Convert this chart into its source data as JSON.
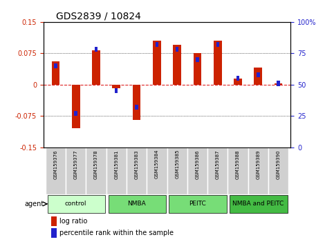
{
  "title": "GDS2839 / 10824",
  "samples": [
    "GSM159376",
    "GSM159377",
    "GSM159378",
    "GSM159381",
    "GSM159383",
    "GSM159384",
    "GSM159385",
    "GSM159386",
    "GSM159387",
    "GSM159388",
    "GSM159389",
    "GSM159390"
  ],
  "log_ratio": [
    0.055,
    -0.105,
    0.082,
    -0.008,
    -0.085,
    0.105,
    0.095,
    0.075,
    0.105,
    0.015,
    0.04,
    0.002
  ],
  "percentile": [
    65,
    27,
    78,
    45,
    32,
    82,
    78,
    70,
    82,
    55,
    58,
    51
  ],
  "ylim": [
    -0.15,
    0.15
  ],
  "yticks_left": [
    -0.15,
    -0.075,
    0,
    0.075,
    0.15
  ],
  "yticks_right": [
    0,
    25,
    50,
    75,
    100
  ],
  "bar_color": "#cc2200",
  "pct_color": "#2222cc",
  "bar_width": 0.4,
  "pct_bar_width": 0.15,
  "legend_log": "log ratio",
  "legend_pct": "percentile rank within the sample",
  "group_configs": [
    {
      "start": 0,
      "end": 2,
      "label": "control",
      "color": "#ccffcc"
    },
    {
      "start": 3,
      "end": 5,
      "label": "NMBA",
      "color": "#77dd77"
    },
    {
      "start": 6,
      "end": 8,
      "label": "PEITC",
      "color": "#77dd77"
    },
    {
      "start": 9,
      "end": 11,
      "label": "NMBA and PEITC",
      "color": "#44bb44"
    }
  ]
}
